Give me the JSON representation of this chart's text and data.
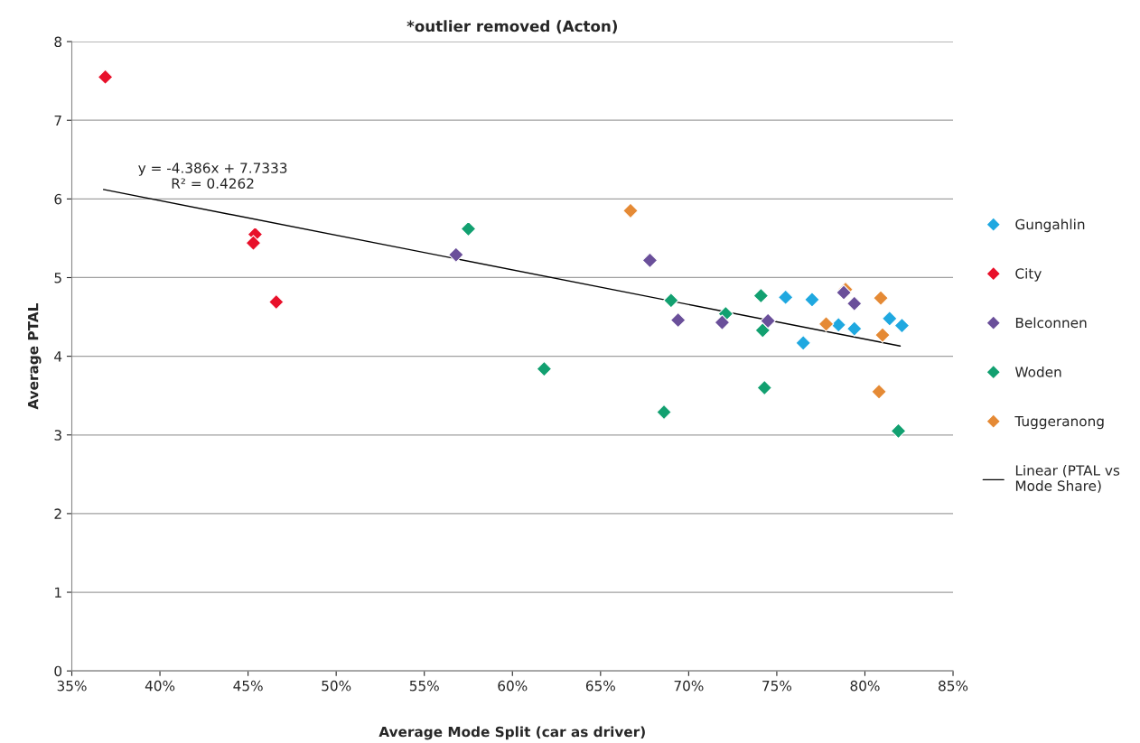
{
  "chart_data": {
    "type": "scatter",
    "title": "*outlier removed (Acton)",
    "xlabel": "Average Mode Split (car as driver)",
    "ylabel": "Average PTAL",
    "xlim": [
      35,
      85
    ],
    "xticks": [
      {
        "value": 35,
        "label": "35%"
      },
      {
        "value": 40,
        "label": "40%"
      },
      {
        "value": 45,
        "label": "45%"
      },
      {
        "value": 50,
        "label": "50%"
      },
      {
        "value": 55,
        "label": "55%"
      },
      {
        "value": 60,
        "label": "60%"
      },
      {
        "value": 65,
        "label": "65%"
      },
      {
        "value": 70,
        "label": "70%"
      },
      {
        "value": 75,
        "label": "75%"
      },
      {
        "value": 80,
        "label": "80%"
      },
      {
        "value": 85,
        "label": "85%"
      }
    ],
    "ylim": [
      0,
      8
    ],
    "yticks": [
      0,
      1,
      2,
      3,
      4,
      5,
      6,
      7,
      8
    ],
    "grid": "y",
    "legend": "right",
    "marker": "diamond",
    "series": [
      {
        "name": "Gungahlin",
        "color": "#1fa8e0",
        "x": [
          75.5,
          77.0,
          78.5,
          79.4,
          81.4,
          82.1,
          76.5
        ],
        "values": [
          4.75,
          4.72,
          4.4,
          4.35,
          4.48,
          4.39,
          4.17
        ]
      },
      {
        "name": "City",
        "color": "#e8102a",
        "x": [
          36.9,
          45.4,
          45.3,
          46.6
        ],
        "values": [
          7.55,
          5.55,
          5.44,
          4.69
        ]
      },
      {
        "name": "Belconnen",
        "color": "#6a4f9a",
        "x": [
          56.8,
          67.8,
          69.4,
          71.9,
          74.5,
          78.8,
          79.4
        ],
        "values": [
          5.29,
          5.22,
          4.46,
          4.43,
          4.45,
          4.81,
          4.67
        ]
      },
      {
        "name": "Woden",
        "color": "#12a070",
        "x": [
          57.5,
          61.8,
          68.6,
          69.0,
          72.1,
          74.1,
          74.2,
          74.3,
          81.9
        ],
        "values": [
          5.62,
          3.84,
          3.29,
          4.71,
          4.54,
          4.77,
          4.33,
          3.6,
          3.05
        ]
      },
      {
        "name": "Tuggeranong",
        "color": "#e58a35",
        "x": [
          66.7,
          77.8,
          78.9,
          80.9,
          81.0,
          80.8
        ],
        "values": [
          5.85,
          4.41,
          4.85,
          4.74,
          4.27,
          3.55
        ]
      },
      {
        "name": "Linear (PTAL vs\nMode Share)",
        "type": "line",
        "color": "#000000",
        "marker": "none",
        "x": [
          36.8,
          82.0
        ],
        "values": [
          6.12,
          4.13
        ]
      }
    ],
    "annotations": [
      "y = -4.386x + 7.7333\nR² = 0.4262"
    ]
  }
}
